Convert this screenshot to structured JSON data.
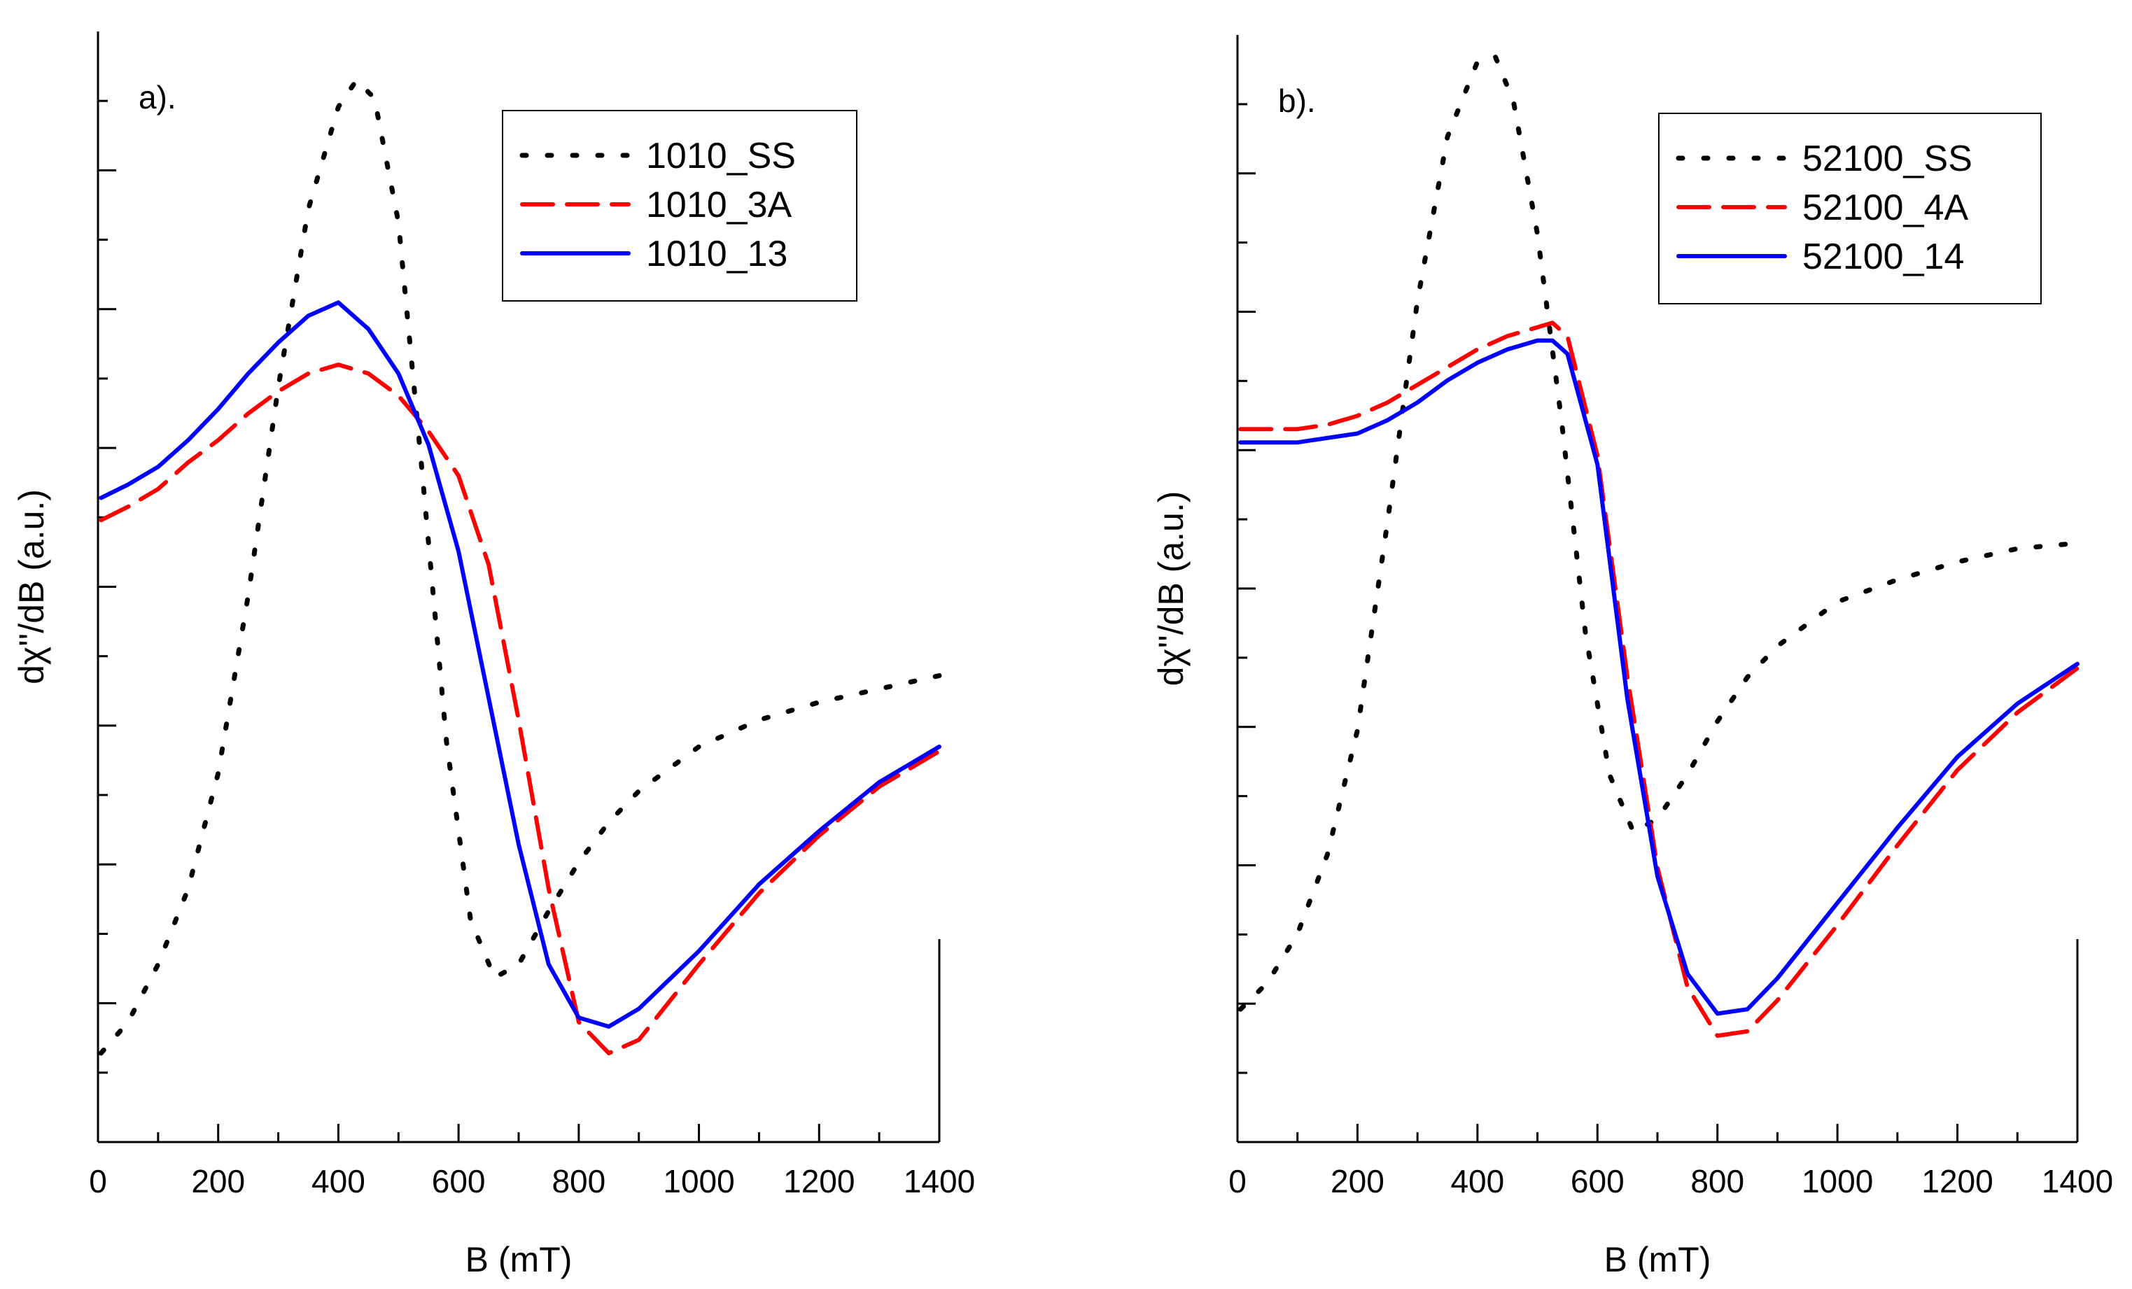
{
  "chart_data": [
    {
      "type": "line",
      "panel_label": "a).",
      "xlabel": "B (mT)",
      "ylabel": "dχ''/dB (a.u.)",
      "xlim": [
        0,
        1400
      ],
      "ylim": [
        -1.25,
        1.25
      ],
      "xticks": [
        0,
        200,
        400,
        600,
        800,
        1000,
        1200,
        1400
      ],
      "y_tick_labels": "none",
      "grid": false,
      "legend": "top-right",
      "series": [
        {
          "name": "1010_SS",
          "color": "#000000",
          "style": "dotted",
          "x": [
            5,
            50,
            100,
            150,
            200,
            250,
            300,
            350,
            400,
            430,
            460,
            500,
            540,
            580,
            620,
            660,
            700,
            750,
            800,
            850,
            900,
            1000,
            1100,
            1200,
            1300,
            1400
          ],
          "y": [
            -1.05,
            -0.98,
            -0.85,
            -0.68,
            -0.42,
            -0.02,
            0.45,
            0.85,
            1.08,
            1.14,
            1.1,
            0.82,
            0.25,
            -0.35,
            -0.75,
            -0.88,
            -0.85,
            -0.73,
            -0.62,
            -0.53,
            -0.46,
            -0.36,
            -0.3,
            -0.26,
            -0.23,
            -0.2
          ]
        },
        {
          "name": "1010_3A",
          "color": "#ff0000",
          "style": "dashed",
          "x": [
            5,
            50,
            100,
            150,
            200,
            250,
            300,
            350,
            400,
            450,
            500,
            550,
            600,
            650,
            700,
            750,
            800,
            850,
            900,
            1000,
            1100,
            1200,
            1300,
            1400
          ],
          "y": [
            0.15,
            0.18,
            0.22,
            0.28,
            0.33,
            0.39,
            0.44,
            0.48,
            0.5,
            0.48,
            0.43,
            0.35,
            0.25,
            0.05,
            -0.3,
            -0.68,
            -0.98,
            -1.05,
            -1.02,
            -0.85,
            -0.69,
            -0.56,
            -0.45,
            -0.37
          ]
        },
        {
          "name": "1010_13",
          "color": "#0000ff",
          "style": "solid",
          "x": [
            5,
            50,
            100,
            150,
            200,
            250,
            300,
            350,
            400,
            450,
            500,
            550,
            600,
            650,
            700,
            750,
            800,
            850,
            900,
            1000,
            1100,
            1200,
            1300,
            1400
          ],
          "y": [
            0.2,
            0.23,
            0.27,
            0.33,
            0.4,
            0.48,
            0.55,
            0.61,
            0.64,
            0.58,
            0.48,
            0.32,
            0.08,
            -0.25,
            -0.58,
            -0.85,
            -0.97,
            -0.99,
            -0.95,
            -0.82,
            -0.67,
            -0.55,
            -0.44,
            -0.36
          ]
        }
      ]
    },
    {
      "type": "line",
      "panel_label": "b).",
      "xlabel": "B (mT)",
      "ylabel": "dχ''/dB (a.u.)",
      "xlim": [
        0,
        1400
      ],
      "ylim": [
        -1.25,
        1.25
      ],
      "xticks": [
        0,
        200,
        400,
        600,
        800,
        1000,
        1200,
        1400
      ],
      "y_tick_labels": "none",
      "grid": false,
      "legend": "top-right",
      "series": [
        {
          "name": "52100_SS",
          "color": "#000000",
          "style": "dotted",
          "x": [
            5,
            50,
            100,
            150,
            200,
            250,
            300,
            350,
            400,
            430,
            460,
            500,
            540,
            580,
            620,
            660,
            700,
            750,
            800,
            850,
            900,
            1000,
            1100,
            1200,
            1300,
            1380
          ],
          "y": [
            -0.95,
            -0.89,
            -0.78,
            -0.6,
            -0.32,
            0.15,
            0.65,
            1.02,
            1.19,
            1.2,
            1.1,
            0.8,
            0.38,
            -0.1,
            -0.42,
            -0.55,
            -0.52,
            -0.42,
            -0.3,
            -0.2,
            -0.13,
            -0.03,
            0.02,
            0.06,
            0.09,
            0.1
          ]
        },
        {
          "name": "52100_4A",
          "color": "#ff0000",
          "style": "dashed",
          "x": [
            5,
            50,
            100,
            150,
            200,
            250,
            300,
            350,
            400,
            450,
            500,
            525,
            550,
            600,
            650,
            700,
            750,
            800,
            850,
            900,
            1000,
            1100,
            1200,
            1300,
            1400
          ],
          "y": [
            0.36,
            0.36,
            0.36,
            0.37,
            0.39,
            0.42,
            0.46,
            0.5,
            0.54,
            0.57,
            0.59,
            0.6,
            0.57,
            0.3,
            -0.2,
            -0.63,
            -0.9,
            -1.01,
            -1.0,
            -0.93,
            -0.76,
            -0.58,
            -0.41,
            -0.28,
            -0.18
          ]
        },
        {
          "name": "52100_14",
          "color": "#0000ff",
          "style": "solid",
          "x": [
            5,
            50,
            100,
            150,
            200,
            250,
            300,
            350,
            400,
            450,
            500,
            525,
            550,
            600,
            650,
            700,
            750,
            800,
            850,
            900,
            1000,
            1100,
            1200,
            1300,
            1400
          ],
          "y": [
            0.33,
            0.33,
            0.33,
            0.34,
            0.35,
            0.38,
            0.42,
            0.47,
            0.51,
            0.54,
            0.56,
            0.56,
            0.53,
            0.28,
            -0.25,
            -0.65,
            -0.87,
            -0.96,
            -0.95,
            -0.88,
            -0.71,
            -0.54,
            -0.38,
            -0.26,
            -0.17
          ]
        }
      ]
    }
  ]
}
